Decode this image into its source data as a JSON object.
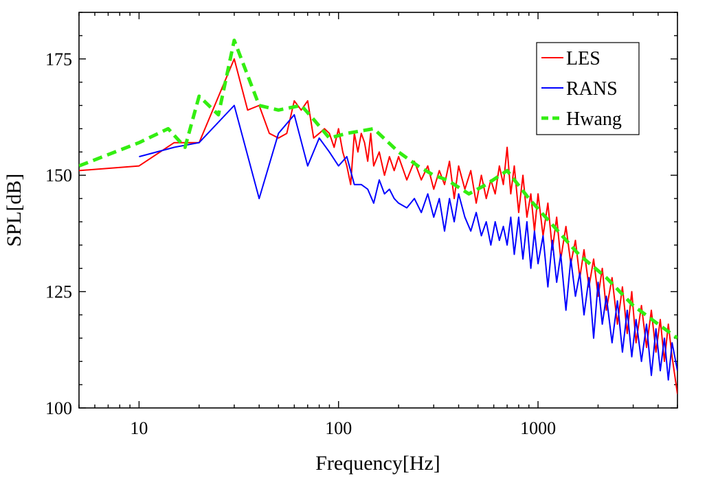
{
  "chart_data": {
    "type": "line",
    "title": "",
    "xlabel": "Frequency[Hz]",
    "ylabel": "SPL[dB]",
    "xscale": "log",
    "xlim": [
      5,
      5000
    ],
    "ylim": [
      100,
      185
    ],
    "xticks": [
      10,
      100,
      1000
    ],
    "xtick_labels": [
      "10",
      "100",
      "1000"
    ],
    "yticks": [
      100,
      125,
      150,
      175
    ],
    "ytick_labels": [
      "100",
      "125",
      "150",
      "175"
    ],
    "grid": false,
    "legend_position": "top-right",
    "series": [
      {
        "name": "LES",
        "color": "#ff0000",
        "style": "solid",
        "x": [
          5,
          10,
          15,
          20,
          30,
          35,
          40,
          45,
          50,
          55,
          60,
          65,
          70,
          75,
          80,
          85,
          90,
          95,
          100,
          105,
          110,
          115,
          120,
          125,
          130,
          135,
          140,
          145,
          150,
          160,
          170,
          180,
          190,
          200,
          220,
          240,
          260,
          280,
          300,
          320,
          340,
          360,
          380,
          400,
          430,
          460,
          490,
          520,
          550,
          580,
          610,
          640,
          670,
          700,
          730,
          760,
          800,
          840,
          880,
          920,
          960,
          1000,
          1060,
          1120,
          1180,
          1240,
          1300,
          1380,
          1460,
          1540,
          1620,
          1700,
          1800,
          1900,
          2000,
          2100,
          2200,
          2350,
          2500,
          2650,
          2800,
          2950,
          3100,
          3300,
          3500,
          3700,
          3900,
          4100,
          4300,
          4500,
          4700,
          5000
        ],
        "y": [
          151,
          152,
          157,
          157,
          175,
          164,
          165,
          159,
          158,
          159,
          166,
          164,
          166,
          158,
          159,
          160,
          159,
          156,
          160,
          155,
          152,
          148,
          159,
          155,
          159,
          157,
          153,
          159,
          152,
          155,
          150,
          154,
          151,
          154,
          149,
          153,
          149,
          152,
          147,
          151,
          148,
          153,
          145,
          152,
          147,
          151,
          144,
          150,
          145,
          149,
          146,
          152,
          148,
          156,
          146,
          152,
          142,
          150,
          141,
          146,
          138,
          146,
          137,
          144,
          134,
          141,
          132,
          139,
          131,
          136,
          128,
          134,
          126,
          132,
          124,
          130,
          121,
          128,
          118,
          126,
          116,
          125,
          114,
          122,
          113,
          121,
          112,
          119,
          110,
          118,
          111,
          103
        ]
      },
      {
        "name": "RANS",
        "color": "#0000ff",
        "style": "solid",
        "x": [
          10,
          15,
          20,
          30,
          40,
          50,
          60,
          70,
          80,
          90,
          100,
          110,
          120,
          130,
          140,
          150,
          160,
          170,
          180,
          190,
          200,
          220,
          240,
          260,
          280,
          300,
          320,
          340,
          360,
          380,
          400,
          430,
          460,
          490,
          520,
          550,
          580,
          610,
          640,
          670,
          700,
          730,
          760,
          800,
          840,
          880,
          920,
          960,
          1000,
          1060,
          1120,
          1180,
          1240,
          1300,
          1380,
          1460,
          1540,
          1620,
          1700,
          1800,
          1900,
          2000,
          2100,
          2200,
          2350,
          2500,
          2650,
          2800,
          2950,
          3100,
          3300,
          3500,
          3700,
          3900,
          4100,
          4300,
          4500,
          4700,
          5000
        ],
        "y": [
          154,
          156,
          157,
          165,
          145,
          159,
          163,
          152,
          158,
          155,
          152,
          154,
          148,
          148,
          147,
          144,
          149,
          146,
          147,
          145,
          144,
          143,
          145,
          142,
          146,
          141,
          145,
          138,
          145,
          140,
          146,
          141,
          138,
          142,
          137,
          140,
          135,
          140,
          136,
          139,
          135,
          141,
          133,
          141,
          132,
          140,
          130,
          138,
          131,
          137,
          126,
          136,
          127,
          133,
          121,
          132,
          124,
          129,
          120,
          128,
          115,
          127,
          118,
          124,
          114,
          123,
          112,
          121,
          111,
          119,
          110,
          118,
          107,
          117,
          108,
          115,
          106,
          114,
          108
        ]
      },
      {
        "name": "Hwang",
        "color": "#33ee11",
        "style": "dashed",
        "x": [
          5,
          10,
          14,
          17,
          20,
          25,
          30,
          40,
          50,
          65,
          75,
          90,
          110,
          150,
          200,
          250,
          300,
          350,
          450,
          550,
          700,
          900,
          1200,
          1600,
          2200,
          3000,
          4000,
          5000
        ],
        "y": [
          152,
          157,
          160,
          156,
          167,
          163,
          179,
          165,
          164,
          165,
          162,
          158,
          159,
          160,
          155,
          152,
          150,
          149,
          146,
          148,
          151,
          145,
          139,
          133,
          128,
          122,
          118,
          115
        ]
      }
    ]
  }
}
